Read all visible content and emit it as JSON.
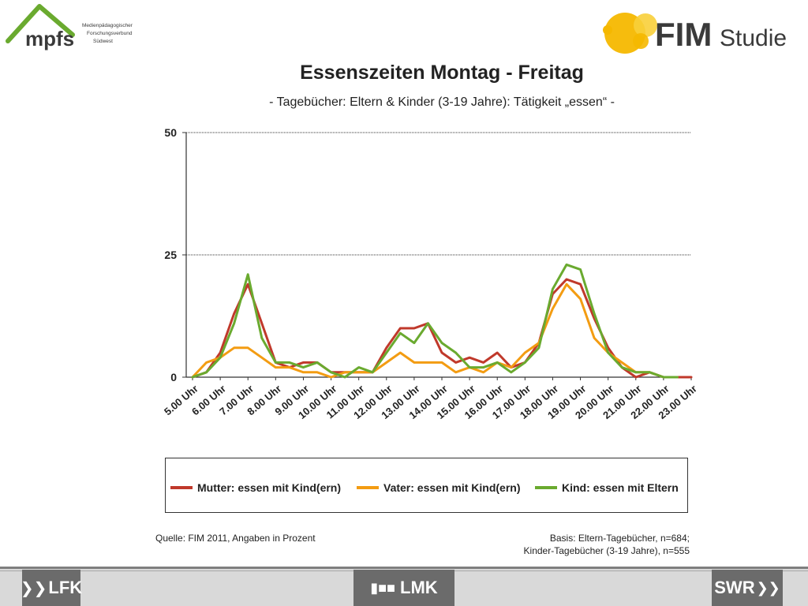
{
  "logos": {
    "mpfs_wordmark": "mpfs",
    "mpfs_lines": [
      "Medienpädagogischer",
      "Forschungsverbund",
      "Südwest"
    ],
    "fim_bold": "FIM",
    "fim_light": "Studie"
  },
  "chart_data": {
    "type": "line",
    "title": "Essenszeiten Montag - Freitag",
    "subtitle": "- Tagebücher: Eltern & Kinder (3-19 Jahre): Tätigkeit „essen“ -",
    "yticks": [
      0,
      25,
      50
    ],
    "ylim": [
      0,
      50
    ],
    "xtick_labels": [
      "5.00 Uhr",
      "6.00 Uhr",
      "7.00 Uhr",
      "8.00 Uhr",
      "9.00 Uhr",
      "10.00 Uhr",
      "11.00 Uhr",
      "12.00 Uhr",
      "13.00 Uhr",
      "14.00 Uhr",
      "15.00 Uhr",
      "16.00 Uhr",
      "17.00 Uhr",
      "18.00 Uhr",
      "19.00 Uhr",
      "20.00 Uhr",
      "21.00 Uhr",
      "22.00 Uhr",
      "23.00 Uhr"
    ],
    "x": [
      "5.00",
      "5.30",
      "6.00",
      "6.30",
      "7.00",
      "7.30",
      "8.00",
      "8.30",
      "9.00",
      "9.30",
      "10.00",
      "10.30",
      "11.00",
      "11.30",
      "12.00",
      "12.30",
      "13.00",
      "13.30",
      "14.00",
      "14.30",
      "15.00",
      "15.30",
      "16.00",
      "16.30",
      "17.00",
      "17.30",
      "18.00",
      "18.30",
      "19.00",
      "19.30",
      "20.00",
      "20.30",
      "21.00",
      "21.30",
      "22.00",
      "22.30",
      "23.00"
    ],
    "series": [
      {
        "name": "Mutter: essen mit Kind(ern)",
        "color": "#c0392b",
        "values": [
          0,
          1,
          5,
          13,
          19,
          11,
          3,
          2,
          3,
          3,
          1,
          1,
          1,
          1,
          6,
          10,
          10,
          11,
          5,
          3,
          4,
          3,
          5,
          2,
          3,
          7,
          17,
          20,
          19,
          12,
          6,
          2,
          0,
          1,
          0,
          0,
          0
        ]
      },
      {
        "name": "Vater: essen mit Kind(ern)",
        "color": "#f39c12",
        "values": [
          0,
          3,
          4,
          6,
          6,
          4,
          2,
          2,
          1,
          1,
          0,
          1,
          1,
          1,
          3,
          5,
          3,
          3,
          3,
          1,
          2,
          1,
          3,
          2,
          5,
          7,
          14,
          19,
          16,
          8,
          5,
          3,
          1,
          1,
          0,
          0,
          null
        ]
      },
      {
        "name": "Kind: essen mit Eltern",
        "color": "#6aaa2f",
        "values": [
          0,
          1,
          4,
          11,
          21,
          8,
          3,
          3,
          2,
          3,
          1,
          0,
          2,
          1,
          5,
          9,
          7,
          11,
          7,
          5,
          2,
          2,
          3,
          1,
          3,
          6,
          18,
          23,
          22,
          13,
          5,
          2,
          1,
          1,
          0,
          0,
          null
        ]
      }
    ]
  },
  "source_text": "Quelle: FIM 2011, Angaben in Prozent",
  "basis_lines": [
    "Basis: Eltern-Tagebücher, n=684;",
    "Kinder-Tagebücher (3-19 Jahre), n=555"
  ],
  "footer": {
    "left": "LFK",
    "center": "LMK",
    "right": "SWR"
  }
}
